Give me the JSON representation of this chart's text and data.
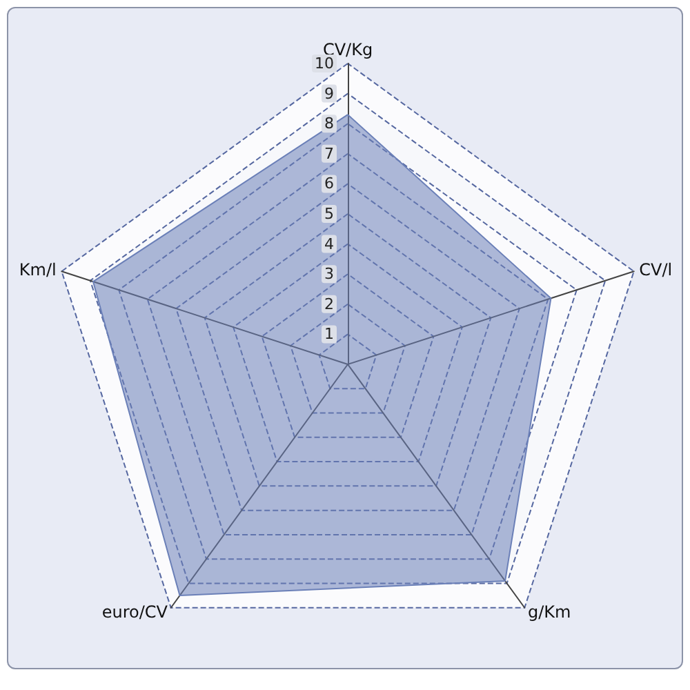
{
  "chart_data": {
    "type": "radar",
    "categories": [
      "CV/Kg",
      "CV/l",
      "g/Km",
      "euro/CV",
      "Km/l"
    ],
    "series": [
      {
        "color": "#6b80b8",
        "values": [
          8.3,
          7.1,
          8.9,
          9.5,
          8.9
        ]
      }
    ],
    "ylim": [
      0,
      10
    ],
    "yticks": [
      1,
      2,
      3,
      4,
      5,
      6,
      7,
      8,
      9,
      10
    ],
    "grid": true,
    "line_style": "solid",
    "marker": "none"
  }
}
